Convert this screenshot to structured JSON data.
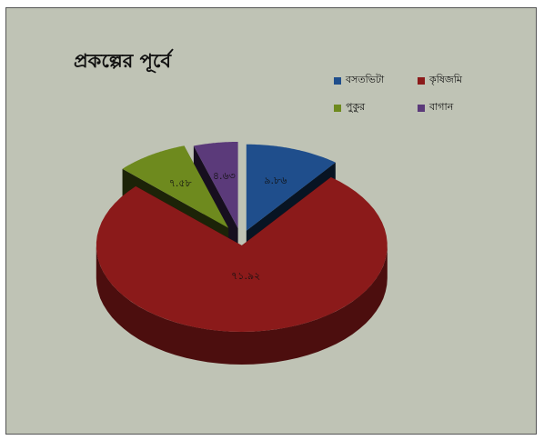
{
  "chart_data": {
    "type": "pie",
    "title": "প্রকল্পের পূর্বে",
    "categories": [
      "বসতভিটা",
      "কৃষিজমি",
      "পুকুর",
      "বাগান"
    ],
    "values": [
      9.86,
      71.92,
      7.58,
      4.63
    ],
    "labels": [
      "৯.৮৬",
      "৭১.৯২",
      "৭.৫৮",
      "৪.৬৩"
    ],
    "colors": [
      "#1f4e8c",
      "#8b1a1a",
      "#6e8a1e",
      "#5b3a7a"
    ],
    "legend_position": "top-right",
    "exploded": true,
    "three_d": true
  }
}
